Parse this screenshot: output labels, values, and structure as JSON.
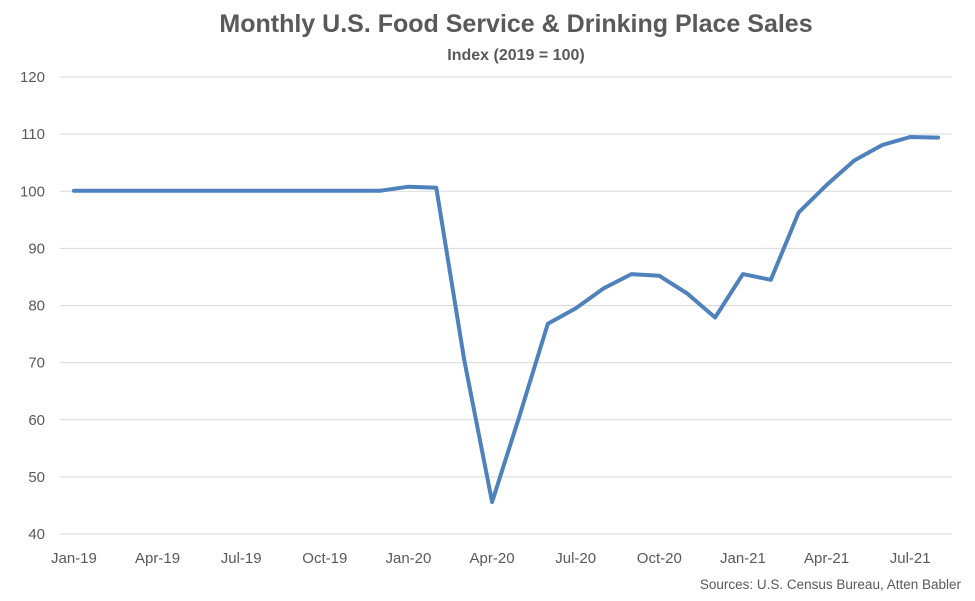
{
  "chart_data": {
    "type": "line",
    "title": "Monthly U.S. Food Service & Drinking Place Sales",
    "subtitle": "Index (2019 = 100)",
    "source": "Sources: U.S. Census Bureau, Atten Babler",
    "ylim": [
      40,
      120
    ],
    "yticks": [
      40,
      50,
      60,
      70,
      80,
      90,
      100,
      110,
      120
    ],
    "xtick_labels": [
      "Jan-19",
      "Apr-19",
      "Jul-19",
      "Oct-19",
      "Jan-20",
      "Apr-20",
      "Jul-20",
      "Oct-20",
      "Jan-21",
      "Apr-21",
      "Jul-21"
    ],
    "grid": true,
    "legend": "none",
    "line_color": "#4f81bd",
    "series": [
      {
        "x": [
          "Jan-19",
          "Feb-19",
          "Mar-19",
          "Apr-19",
          "May-19",
          "Jun-19",
          "Jul-19",
          "Aug-19",
          "Sep-19",
          "Oct-19",
          "Nov-19",
          "Dec-19",
          "Jan-20",
          "Feb-20",
          "Mar-20",
          "Apr-20",
          "May-20",
          "Jun-20",
          "Jul-20",
          "Aug-20",
          "Sep-20",
          "Oct-20",
          "Nov-20",
          "Dec-20",
          "Jan-21",
          "Feb-21",
          "Mar-21",
          "Apr-21",
          "May-21",
          "Jun-21",
          "Jul-21",
          "Aug-21"
        ],
        "values": [
          100.1,
          100.1,
          100.1,
          100.1,
          100.1,
          100.1,
          100.1,
          100.1,
          100.1,
          100.1,
          100.1,
          100.1,
          100.8,
          100.6,
          70.5,
          45.6,
          60.9,
          76.8,
          79.5,
          83.0,
          85.5,
          85.2,
          82.1,
          77.9,
          85.5,
          84.5,
          96.3,
          101.1,
          105.4,
          108.1,
          109.5,
          109.4
        ]
      }
    ]
  }
}
